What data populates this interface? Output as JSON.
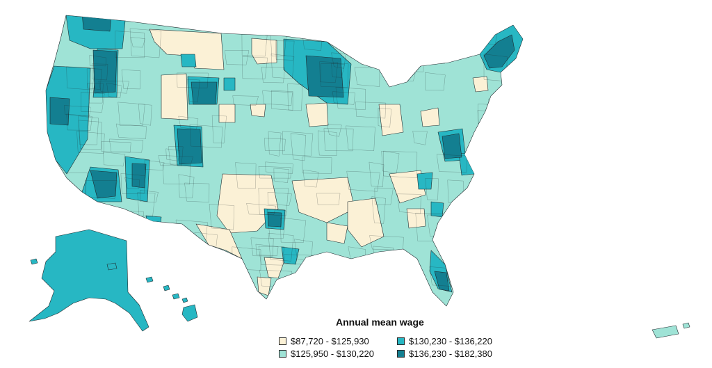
{
  "legend": {
    "title": "Annual mean wage",
    "items": [
      {
        "label": "$87,720 - $125,930",
        "color": "#fbf1d6"
      },
      {
        "label": "$125,950 - $130,220",
        "color": "#9fe3d6"
      },
      {
        "label": "$130,230 - $136,220",
        "color": "#27b7c3"
      },
      {
        "label": "$136,230 - $182,380",
        "color": "#137f91"
      }
    ]
  },
  "palette": {
    "tier1": "#fbf1d6",
    "tier2": "#9fe3d6",
    "tier3": "#27b7c3",
    "tier4": "#137f91",
    "border": "#1f2a2e"
  }
}
